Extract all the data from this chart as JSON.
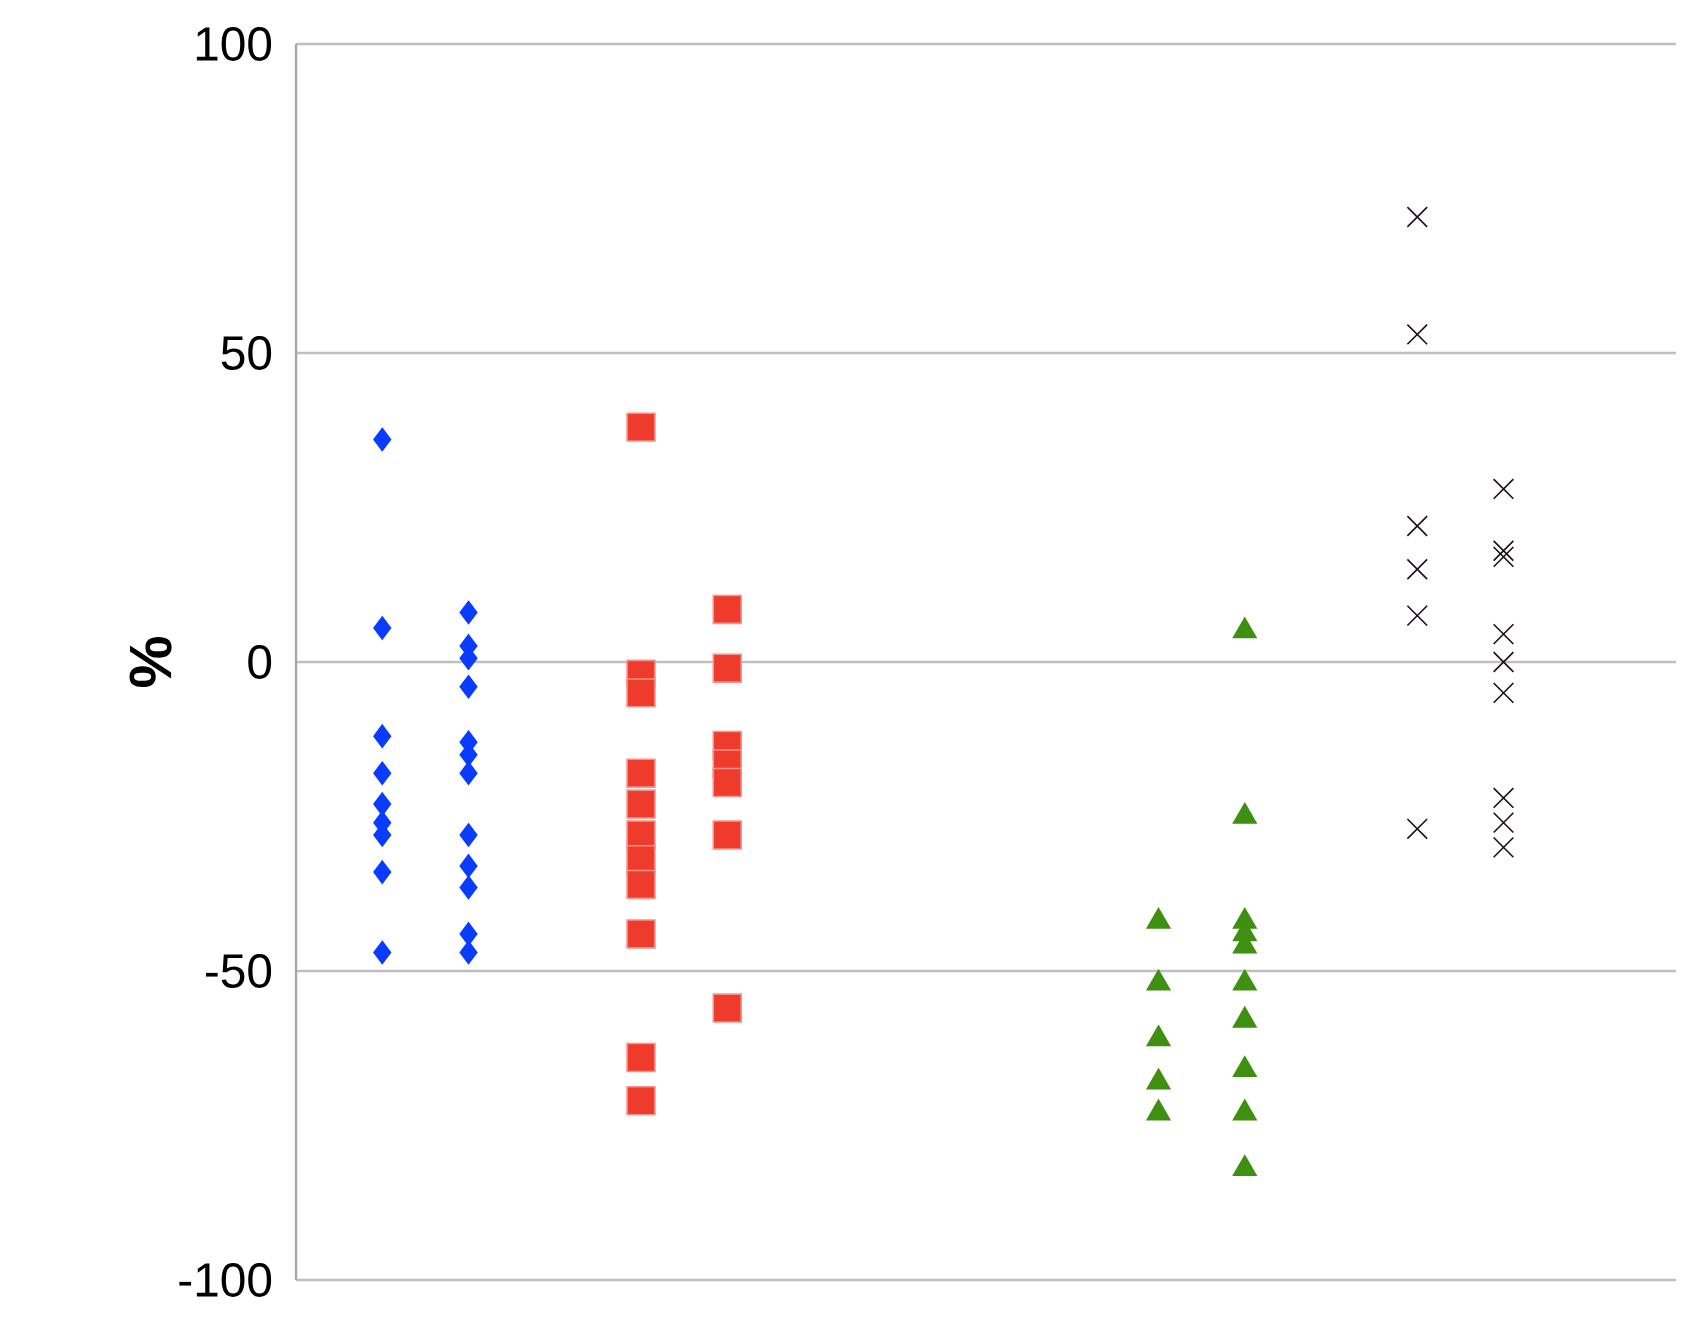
{
  "chart_data": {
    "type": "scatter",
    "ylabel": "%",
    "ylim": [
      -100,
      100
    ],
    "yticks": [
      -100,
      -50,
      0,
      50,
      100
    ],
    "categories": [
      null,
      null,
      null,
      null,
      null,
      null,
      null,
      null,
      null,
      null,
      null,
      null,
      null,
      null,
      null
    ],
    "tick_labels": "y",
    "grid": "y",
    "series": [
      {
        "color": "#0a3cff",
        "marker": "diamond",
        "values": [
          36,
          8,
          null,
          null,
          null,
          null,
          null,
          null,
          null,
          null,
          null,
          null,
          null,
          null,
          null
        ]
      },
      {
        "color": "#0a3cff",
        "marker": "diamond",
        "values": [
          5.5,
          2.6,
          null,
          null,
          null,
          null,
          null,
          null,
          null,
          null,
          null,
          null,
          null,
          null,
          null
        ]
      },
      {
        "color": "#0a3cff",
        "marker": "diamond",
        "values": [
          -12,
          0.6,
          null,
          null,
          null,
          null,
          null,
          null,
          null,
          null,
          null,
          null,
          null,
          null,
          null
        ]
      },
      {
        "color": "#0a3cff",
        "marker": "diamond",
        "values": [
          -18,
          -4,
          null,
          null,
          null,
          null,
          null,
          null,
          null,
          null,
          null,
          null,
          null,
          null,
          null
        ]
      },
      {
        "color": "#0a3cff",
        "marker": "diamond",
        "values": [
          -23,
          -13,
          null,
          null,
          null,
          null,
          null,
          null,
          null,
          null,
          null,
          null,
          null,
          null,
          null
        ]
      },
      {
        "color": "#0a3cff",
        "marker": "diamond",
        "values": [
          -26,
          -15,
          null,
          null,
          null,
          null,
          null,
          null,
          null,
          null,
          null,
          null,
          null,
          null,
          null
        ]
      },
      {
        "color": "#0a3cff",
        "marker": "diamond",
        "values": [
          -28,
          -18,
          null,
          null,
          null,
          null,
          null,
          null,
          null,
          null,
          null,
          null,
          null,
          null,
          null
        ]
      },
      {
        "color": "#0a3cff",
        "marker": "diamond",
        "values": [
          -34,
          -28,
          null,
          null,
          null,
          null,
          null,
          null,
          null,
          null,
          null,
          null,
          null,
          null,
          null
        ]
      },
      {
        "color": "#0a3cff",
        "marker": "diamond",
        "values": [
          -47,
          -33,
          null,
          null,
          null,
          null,
          null,
          null,
          null,
          null,
          null,
          null,
          null,
          null,
          null
        ]
      },
      {
        "color": "#0a3cff",
        "marker": "diamond",
        "values": [
          null,
          -36.5,
          null,
          null,
          null,
          null,
          null,
          null,
          null,
          null,
          null,
          null,
          null,
          null,
          null
        ]
      },
      {
        "color": "#0a3cff",
        "marker": "diamond",
        "values": [
          null,
          -44,
          null,
          null,
          null,
          null,
          null,
          null,
          null,
          null,
          null,
          null,
          null,
          null,
          null
        ]
      },
      {
        "color": "#0a3cff",
        "marker": "diamond",
        "values": [
          null,
          -47,
          null,
          null,
          null,
          null,
          null,
          null,
          null,
          null,
          null,
          null,
          null,
          null,
          null
        ]
      },
      {
        "color": "#ee3b2b",
        "marker": "square",
        "values": [
          null,
          null,
          null,
          38,
          8.5,
          null,
          null,
          null,
          null,
          null,
          null,
          null,
          null,
          null,
          null
        ]
      },
      {
        "color": "#ee3b2b",
        "marker": "square",
        "values": [
          null,
          null,
          null,
          -2,
          -1,
          null,
          null,
          null,
          null,
          null,
          null,
          null,
          null,
          null,
          null
        ]
      },
      {
        "color": "#ee3b2b",
        "marker": "square",
        "values": [
          null,
          null,
          null,
          -5,
          -13.5,
          null,
          null,
          null,
          null,
          null,
          null,
          null,
          null,
          null,
          null
        ]
      },
      {
        "color": "#ee3b2b",
        "marker": "square",
        "values": [
          null,
          null,
          null,
          -18,
          -16.5,
          null,
          null,
          null,
          null,
          null,
          null,
          null,
          null,
          null,
          null
        ]
      },
      {
        "color": "#ee3b2b",
        "marker": "square",
        "values": [
          null,
          null,
          null,
          -23,
          -19.5,
          null,
          null,
          null,
          null,
          null,
          null,
          null,
          null,
          null,
          null
        ]
      },
      {
        "color": "#ee3b2b",
        "marker": "square",
        "values": [
          null,
          null,
          null,
          -28,
          -28,
          null,
          null,
          null,
          null,
          null,
          null,
          null,
          null,
          null,
          null
        ]
      },
      {
        "color": "#ee3b2b",
        "marker": "square",
        "values": [
          null,
          null,
          null,
          -32,
          -56,
          null,
          null,
          null,
          null,
          null,
          null,
          null,
          null,
          null,
          null
        ]
      },
      {
        "color": "#ee3b2b",
        "marker": "square",
        "values": [
          null,
          null,
          null,
          -36,
          null,
          null,
          null,
          null,
          null,
          null,
          null,
          null,
          null,
          null,
          null
        ]
      },
      {
        "color": "#ee3b2b",
        "marker": "square",
        "values": [
          null,
          null,
          null,
          -44,
          null,
          null,
          null,
          null,
          null,
          null,
          null,
          null,
          null,
          null,
          null
        ]
      },
      {
        "color": "#ee3b2b",
        "marker": "square",
        "values": [
          null,
          null,
          null,
          -64,
          null,
          null,
          null,
          null,
          null,
          null,
          null,
          null,
          null,
          null,
          null
        ]
      },
      {
        "color": "#ee3b2b",
        "marker": "square",
        "values": [
          null,
          null,
          null,
          -71,
          null,
          null,
          null,
          null,
          null,
          null,
          null,
          null,
          null,
          null,
          null
        ]
      },
      {
        "color": "#3f8f10",
        "marker": "triangle",
        "values": [
          null,
          null,
          null,
          null,
          null,
          null,
          null,
          null,
          null,
          -42,
          5,
          null,
          null,
          null,
          null
        ]
      },
      {
        "color": "#3f8f10",
        "marker": "triangle",
        "values": [
          null,
          null,
          null,
          null,
          null,
          null,
          null,
          null,
          null,
          -52,
          -25,
          null,
          null,
          null,
          null
        ]
      },
      {
        "color": "#3f8f10",
        "marker": "triangle",
        "values": [
          null,
          null,
          null,
          null,
          null,
          null,
          null,
          null,
          null,
          -61,
          -42,
          null,
          null,
          null,
          null
        ]
      },
      {
        "color": "#3f8f10",
        "marker": "triangle",
        "values": [
          null,
          null,
          null,
          null,
          null,
          null,
          null,
          null,
          null,
          -68,
          -44,
          null,
          null,
          null,
          null
        ]
      },
      {
        "color": "#3f8f10",
        "marker": "triangle",
        "values": [
          null,
          null,
          null,
          null,
          null,
          null,
          null,
          null,
          null,
          -73,
          -46,
          null,
          null,
          null,
          null
        ]
      },
      {
        "color": "#3f8f10",
        "marker": "triangle",
        "values": [
          null,
          null,
          null,
          null,
          null,
          null,
          null,
          null,
          null,
          null,
          -52,
          null,
          null,
          null,
          null
        ]
      },
      {
        "color": "#3f8f10",
        "marker": "triangle",
        "values": [
          null,
          null,
          null,
          null,
          null,
          null,
          null,
          null,
          null,
          null,
          -58,
          null,
          null,
          null,
          null
        ]
      },
      {
        "color": "#3f8f10",
        "marker": "triangle",
        "values": [
          null,
          null,
          null,
          null,
          null,
          null,
          null,
          null,
          null,
          null,
          -66,
          null,
          null,
          null,
          null
        ]
      },
      {
        "color": "#3f8f10",
        "marker": "triangle",
        "values": [
          null,
          null,
          null,
          null,
          null,
          null,
          null,
          null,
          null,
          null,
          -73,
          null,
          null,
          null,
          null
        ]
      },
      {
        "color": "#3f8f10",
        "marker": "triangle",
        "values": [
          null,
          null,
          null,
          null,
          null,
          null,
          null,
          null,
          null,
          null,
          -82,
          null,
          null,
          null,
          null
        ]
      },
      {
        "color": "#1a0f1f",
        "marker": "cross",
        "values": [
          null,
          null,
          null,
          null,
          null,
          null,
          null,
          null,
          null,
          null,
          null,
          null,
          72,
          28,
          null
        ]
      },
      {
        "color": "#1a0f1f",
        "marker": "cross",
        "values": [
          null,
          null,
          null,
          null,
          null,
          null,
          null,
          null,
          null,
          null,
          null,
          null,
          53,
          18,
          null
        ]
      },
      {
        "color": "#1a0f1f",
        "marker": "cross",
        "values": [
          null,
          null,
          null,
          null,
          null,
          null,
          null,
          null,
          null,
          null,
          null,
          null,
          22,
          17,
          null
        ]
      },
      {
        "color": "#1a0f1f",
        "marker": "cross",
        "values": [
          null,
          null,
          null,
          null,
          null,
          null,
          null,
          null,
          null,
          null,
          null,
          null,
          15,
          4.5,
          null
        ]
      },
      {
        "color": "#1a0f1f",
        "marker": "cross",
        "values": [
          null,
          null,
          null,
          null,
          null,
          null,
          null,
          null,
          null,
          null,
          null,
          null,
          7.5,
          0,
          null
        ]
      },
      {
        "color": "#1a0f1f",
        "marker": "cross",
        "values": [
          null,
          null,
          null,
          null,
          null,
          null,
          null,
          null,
          null,
          null,
          null,
          null,
          -27,
          -5,
          null
        ]
      },
      {
        "color": "#1a0f1f",
        "marker": "cross",
        "values": [
          null,
          null,
          null,
          null,
          null,
          null,
          null,
          null,
          null,
          null,
          null,
          null,
          null,
          -22,
          null
        ]
      },
      {
        "color": "#1a0f1f",
        "marker": "cross",
        "values": [
          null,
          null,
          null,
          null,
          null,
          null,
          null,
          null,
          null,
          null,
          null,
          null,
          null,
          -26,
          null
        ]
      },
      {
        "color": "#1a0f1f",
        "marker": "cross",
        "values": [
          null,
          null,
          null,
          null,
          null,
          null,
          null,
          null,
          null,
          null,
          null,
          null,
          null,
          -30,
          null
        ]
      }
    ]
  }
}
